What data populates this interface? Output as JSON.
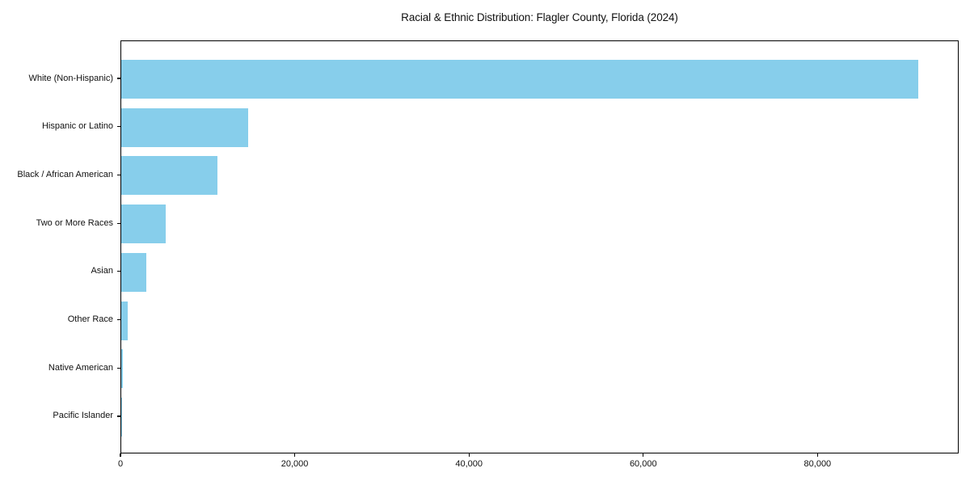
{
  "chart_data": {
    "type": "bar",
    "orientation": "horizontal",
    "title": "Racial & Ethnic Distribution: Flagler County, Florida (2024)",
    "categories": [
      "White (Non-Hispanic)",
      "Hispanic or Latino",
      "Black / African American",
      "Two or More Races",
      "Asian",
      "Other Race",
      "Native American",
      "Pacific Islander"
    ],
    "values": [
      91500,
      14600,
      11000,
      5100,
      2900,
      770,
      150,
      50
    ],
    "xlabel": "",
    "ylabel": "",
    "xlim": [
      0,
      96200
    ],
    "xticks": [
      0,
      20000,
      40000,
      60000,
      80000
    ],
    "xtick_labels": [
      "0",
      "20,000",
      "40,000",
      "60,000",
      "80,000"
    ],
    "bar_color": "#87CEEB",
    "grid": false,
    "legend_position": "none",
    "plot_border_color": "#000000",
    "background_color": "#ffffff"
  }
}
